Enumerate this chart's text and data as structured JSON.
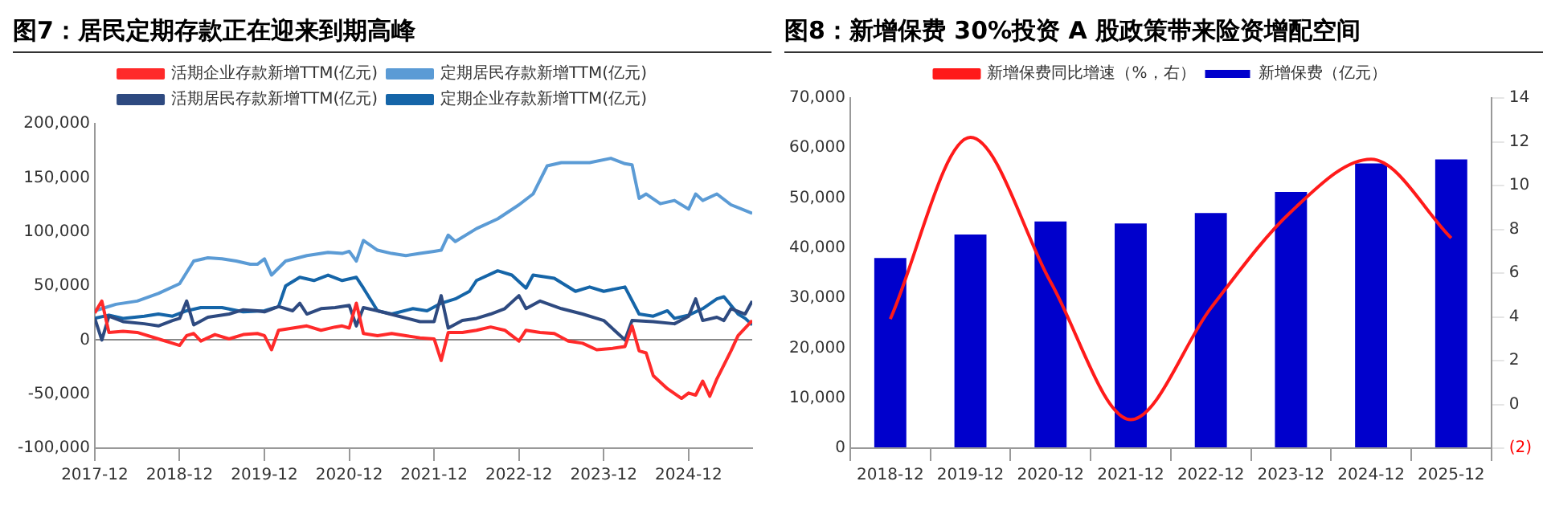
{
  "chart_data": [
    {
      "type": "line",
      "title": "图7：居民定期存款正在迎来到期高峰",
      "legend": "top",
      "marker": "none",
      "xlim": [
        "2017-12",
        "2025-09"
      ],
      "xticks": [
        "2017-12",
        "2018-12",
        "2019-12",
        "2020-12",
        "2021-12",
        "2022-12",
        "2023-12",
        "2024-12"
      ],
      "ylim": [
        -100000,
        200000
      ],
      "yticks": [
        {
          "value": -100000,
          "label": "-100,000"
        },
        {
          "value": -50000,
          "label": "-50,000"
        },
        0,
        {
          "value": 50000,
          "label": "50,000"
        },
        {
          "value": 100000,
          "label": "100,000"
        },
        {
          "value": 150000,
          "label": "150,000"
        },
        {
          "value": 200000,
          "label": "200,000"
        }
      ],
      "series": [
        {
          "name": "活期企业存款新增TTM(亿元)",
          "color": "#ff2a2a",
          "x": [
            "2017-12",
            "2018-01",
            "2018-02",
            "2018-04",
            "2018-06",
            "2018-09",
            "2018-11",
            "2018-12",
            "2019-01",
            "2019-02",
            "2019-03",
            "2019-05",
            "2019-07",
            "2019-09",
            "2019-11",
            "2019-12",
            "2020-01",
            "2020-02",
            "2020-04",
            "2020-06",
            "2020-08",
            "2020-10",
            "2020-11",
            "2020-12",
            "2021-01",
            "2021-02",
            "2021-04",
            "2021-06",
            "2021-08",
            "2021-10",
            "2021-12",
            "2022-01",
            "2022-02",
            "2022-04",
            "2022-06",
            "2022-08",
            "2022-10",
            "2022-12",
            "2023-01",
            "2023-03",
            "2023-05",
            "2023-07",
            "2023-09",
            "2023-11",
            "2024-01",
            "2024-03",
            "2024-04",
            "2024-05",
            "2024-06",
            "2024-07",
            "2024-09",
            "2024-11",
            "2024-12",
            "2025-01",
            "2025-02",
            "2025-03",
            "2025-04",
            "2025-06",
            "2025-07",
            "2025-09"
          ],
          "values": [
            25000,
            36000,
            7000,
            8000,
            7000,
            1000,
            -3000,
            -5000,
            4000,
            6000,
            -1000,
            5000,
            1000,
            5000,
            6000,
            4000,
            -9000,
            9000,
            11000,
            13000,
            9000,
            12000,
            13000,
            11000,
            34000,
            6000,
            4000,
            6000,
            4000,
            2000,
            1000,
            -19000,
            7000,
            7000,
            9000,
            12000,
            9000,
            -1000,
            9000,
            7000,
            6000,
            -1000,
            -3000,
            -9000,
            -8000,
            -6000,
            13000,
            -10000,
            -12000,
            -33000,
            -45000,
            -54000,
            -49000,
            -51000,
            -38000,
            -52000,
            -36000,
            -10000,
            4000,
            18000
          ]
        },
        {
          "name": "定期居民存款新增TTM(亿元)",
          "color": "#5b9bd5",
          "x": [
            "2017-12",
            "2018-03",
            "2018-06",
            "2018-09",
            "2018-12",
            "2019-02",
            "2019-04",
            "2019-06",
            "2019-08",
            "2019-10",
            "2019-11",
            "2019-12",
            "2020-01",
            "2020-03",
            "2020-06",
            "2020-09",
            "2020-11",
            "2020-12",
            "2021-01",
            "2021-02",
            "2021-04",
            "2021-06",
            "2021-08",
            "2021-10",
            "2021-12",
            "2022-01",
            "2022-02",
            "2022-03",
            "2022-06",
            "2022-09",
            "2022-12",
            "2023-02",
            "2023-04",
            "2023-06",
            "2023-10",
            "2024-01",
            "2024-03",
            "2024-04",
            "2024-05",
            "2024-06",
            "2024-08",
            "2024-10",
            "2024-12",
            "2025-01",
            "2025-02",
            "2025-04",
            "2025-06",
            "2025-09"
          ],
          "values": [
            27000,
            33000,
            36000,
            43000,
            52000,
            73000,
            76000,
            75000,
            73000,
            70000,
            70000,
            75000,
            60000,
            73000,
            78000,
            81000,
            80000,
            82000,
            73000,
            92000,
            83000,
            80000,
            78000,
            80000,
            82000,
            83000,
            97000,
            91000,
            103000,
            112000,
            125000,
            135000,
            161000,
            164000,
            164000,
            168000,
            163000,
            162000,
            131000,
            135000,
            126000,
            129000,
            121000,
            135000,
            129000,
            135000,
            125000,
            117000
          ]
        },
        {
          "name": "活期居民存款新增TTM(亿元)",
          "color": "#2e4a80",
          "x": [
            "2017-12",
            "2018-01",
            "2018-02",
            "2018-04",
            "2018-07",
            "2018-09",
            "2018-11",
            "2018-12",
            "2019-01",
            "2019-02",
            "2019-04",
            "2019-07",
            "2019-09",
            "2019-11",
            "2019-12",
            "2020-02",
            "2020-04",
            "2020-05",
            "2020-06",
            "2020-08",
            "2020-10",
            "2020-12",
            "2021-01",
            "2021-02",
            "2021-04",
            "2021-07",
            "2021-10",
            "2021-12",
            "2022-01",
            "2022-02",
            "2022-04",
            "2022-06",
            "2022-08",
            "2022-10",
            "2022-12",
            "2023-01",
            "2023-03",
            "2023-06",
            "2023-09",
            "2023-12",
            "2024-02",
            "2024-03",
            "2024-04",
            "2024-07",
            "2024-10",
            "2024-12",
            "2025-01",
            "2025-02",
            "2025-04",
            "2025-05",
            "2025-06",
            "2025-08",
            "2025-09"
          ],
          "values": [
            20000,
            0,
            22000,
            17000,
            15000,
            13000,
            18000,
            20000,
            36000,
            14000,
            21000,
            24000,
            28000,
            27000,
            26000,
            31000,
            27000,
            34000,
            24000,
            29000,
            30000,
            32000,
            13000,
            30000,
            27000,
            22000,
            17000,
            17000,
            41000,
            11000,
            18000,
            20000,
            24000,
            29000,
            41000,
            29000,
            36000,
            29000,
            24000,
            18000,
            6000,
            0,
            18000,
            17000,
            15000,
            22000,
            38000,
            18000,
            21000,
            18000,
            29000,
            24000,
            36000
          ]
        },
        {
          "name": "定期企业存款新增TTM(亿元)",
          "color": "#1565a8",
          "x": [
            "2017-12",
            "2018-02",
            "2018-04",
            "2018-07",
            "2018-09",
            "2018-11",
            "2019-01",
            "2019-03",
            "2019-06",
            "2019-09",
            "2019-12",
            "2020-02",
            "2020-03",
            "2020-05",
            "2020-07",
            "2020-09",
            "2020-11",
            "2021-01",
            "2021-02",
            "2021-04",
            "2021-06",
            "2021-09",
            "2021-11",
            "2022-01",
            "2022-03",
            "2022-05",
            "2022-06",
            "2022-09",
            "2022-11",
            "2023-01",
            "2023-02",
            "2023-05",
            "2023-08",
            "2023-10",
            "2023-12",
            "2024-03",
            "2024-05",
            "2024-07",
            "2024-09",
            "2024-10",
            "2024-12",
            "2025-02",
            "2025-04",
            "2025-05",
            "2025-07",
            "2025-08",
            "2025-09"
          ],
          "values": [
            20000,
            23000,
            20000,
            22000,
            24000,
            22000,
            27000,
            30000,
            30000,
            26000,
            27000,
            31000,
            50000,
            58000,
            55000,
            60000,
            55000,
            58000,
            48000,
            27000,
            24000,
            29000,
            27000,
            34000,
            38000,
            45000,
            55000,
            64000,
            60000,
            48000,
            60000,
            57000,
            45000,
            49000,
            45000,
            49000,
            24000,
            22000,
            27000,
            20000,
            23000,
            29000,
            38000,
            40000,
            24000,
            20000,
            14000
          ]
        }
      ]
    },
    {
      "type": "bar",
      "title": "图8：新增保费 30%投资 A 股政策带来险资增配空间",
      "legend": "top",
      "marker": "none",
      "categories": [
        "2018-12",
        "2019-12",
        "2020-12",
        "2021-12",
        "2022-12",
        "2023-12",
        "2024-12",
        "2025-12"
      ],
      "ylim": [
        0,
        70000
      ],
      "yticks": [
        0,
        {
          "value": 10000,
          "label": "10,000"
        },
        {
          "value": 20000,
          "label": "20,000"
        },
        {
          "value": 30000,
          "label": "30,000"
        },
        {
          "value": 40000,
          "label": "40,000"
        },
        {
          "value": 50000,
          "label": "50,000"
        },
        {
          "value": 60000,
          "label": "60,000"
        },
        {
          "value": 70000,
          "label": "70,000"
        }
      ],
      "y2lim": [
        -2,
        14
      ],
      "y2ticks": [
        {
          "value": -2,
          "label": "(2)"
        },
        0,
        2,
        4,
        6,
        8,
        10,
        12,
        14
      ],
      "series": [
        {
          "name": "新增保费（亿元）",
          "type": "bar",
          "color": "#0000cc",
          "values": [
            38000,
            42700,
            45300,
            44900,
            47000,
            51200,
            56900,
            57700
          ]
        },
        {
          "name": "新增保费同比增速（%，右）",
          "type": "line",
          "axis": "y2",
          "color": "#ff1a1a",
          "values": [
            3.9,
            12.2,
            5.6,
            -0.7,
            4.4,
            8.8,
            11.2,
            7.6
          ]
        }
      ]
    }
  ]
}
